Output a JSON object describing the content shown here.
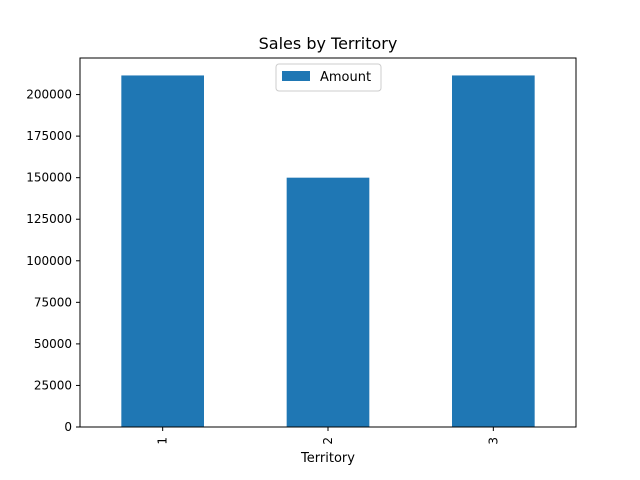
{
  "chart_data": {
    "type": "bar",
    "title": "Sales by Territory",
    "xlabel": "Territory",
    "ylabel": "",
    "categories": [
      "1",
      "2",
      "3"
    ],
    "series": [
      {
        "name": "Amount",
        "values": [
          211500,
          150000,
          211500
        ],
        "color": "#1f77b4"
      }
    ],
    "ylim": [
      0,
      222000
    ],
    "yticks": [
      0,
      25000,
      50000,
      75000,
      100000,
      125000,
      150000,
      175000,
      200000
    ],
    "ytick_labels": [
      "0",
      "25000",
      "50000",
      "75000",
      "100000",
      "125000",
      "150000",
      "175000",
      "200000"
    ],
    "xtick_rotation": "vertical",
    "grid": false,
    "legend": {
      "placement": "top-center",
      "entries": [
        "Amount"
      ]
    }
  }
}
